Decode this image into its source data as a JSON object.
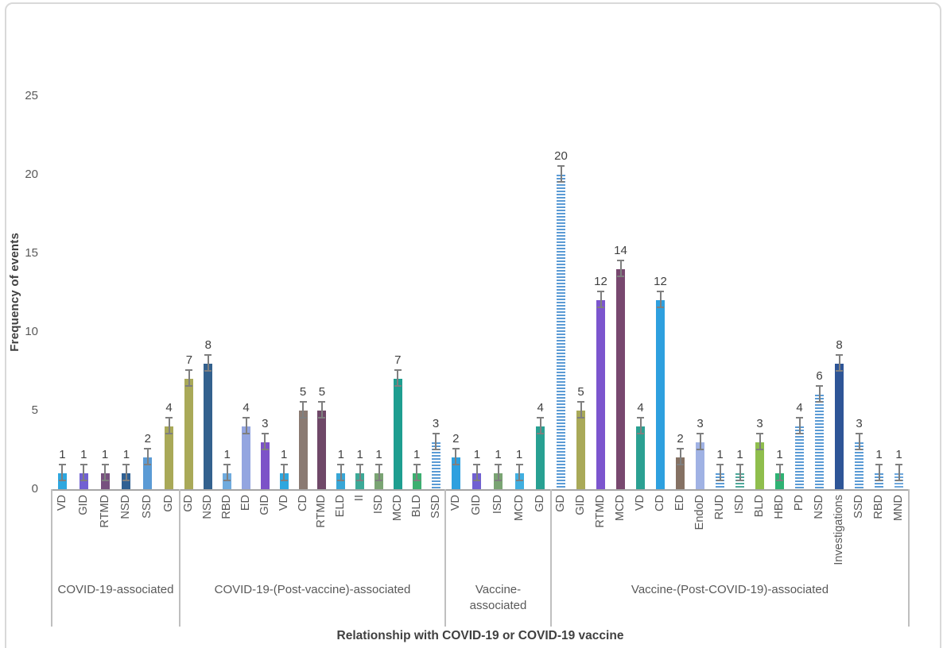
{
  "chart_data": {
    "type": "bar",
    "title": "",
    "xlabel": "Relationship with COVID-19 or COVID-19 vaccine",
    "ylabel": "Frequency of events",
    "ylim": [
      0,
      25
    ],
    "yticks": [
      0,
      5,
      10,
      15,
      20,
      25
    ],
    "grid": false,
    "legend_position": "none",
    "error_bars": true,
    "data_labels": true,
    "groups": [
      {
        "label": "COVID-19-associated",
        "categories": [
          "VD",
          "GID",
          "RTMD",
          "NSD",
          "SSD",
          "GD"
        ],
        "values": [
          1,
          1,
          1,
          1,
          2,
          4
        ],
        "colors": [
          "#2EA7DF",
          "#7161D2",
          "#77517F",
          "#2F6093",
          "#5B9BD5",
          "#A9A958"
        ],
        "striped": [
          false,
          false,
          false,
          false,
          false,
          false
        ]
      },
      {
        "label": "COVID-19-(Post-vaccine)-associated",
        "categories": [
          "GD",
          "NSD",
          "RBD",
          "ED",
          "GID",
          "VD",
          "CD",
          "RTMD",
          "ELD",
          "II",
          "ISD",
          "MCD",
          "BLD",
          "SSD"
        ],
        "values": [
          7,
          8,
          1,
          4,
          3,
          1,
          5,
          5,
          1,
          1,
          1,
          7,
          1,
          3
        ],
        "colors": [
          "#A9A958",
          "#33618E",
          "#6FABDE",
          "#93A5E0",
          "#7C52C8",
          "#2EA7DF",
          "#8A7A72",
          "#6F4868",
          "#38A6D6",
          "#3CA997",
          "#7AA473",
          "#1E9E90",
          "#3CAF70",
          "#5B9BD5"
        ],
        "striped": [
          false,
          false,
          false,
          false,
          false,
          false,
          false,
          false,
          false,
          false,
          false,
          false,
          false,
          true
        ]
      },
      {
        "label": "Vaccine-\nassociated",
        "categories": [
          "VD",
          "GID",
          "ISD",
          "MCD",
          "GD"
        ],
        "values": [
          2,
          1,
          1,
          1,
          4
        ],
        "colors": [
          "#2EA0DF",
          "#7161D2",
          "#7AA473",
          "#41AFE0",
          "#28A092"
        ],
        "striped": [
          false,
          false,
          false,
          false,
          false
        ]
      },
      {
        "label": "Vaccine-(Post-COVID-19)-associated",
        "categories": [
          "GD",
          "GID",
          "RTMD",
          "MCD",
          "VD",
          "CD",
          "ED",
          "EndoD",
          "RUD",
          "ISD",
          "BLD",
          "HBD",
          "PD",
          "NSD",
          "Investigations",
          "SSD",
          "RBD",
          "MND"
        ],
        "values": [
          20,
          5,
          12,
          14,
          4,
          12,
          2,
          3,
          1,
          1,
          3,
          1,
          4,
          6,
          8,
          3,
          1,
          1
        ],
        "colors": [
          "#5B9BD5",
          "#A9A958",
          "#7C55CE",
          "#78486F",
          "#2BA092",
          "#2EA0DF",
          "#857163",
          "#A0B2E4",
          "#5B9BD5",
          "#4FA89A",
          "#8FBE4D",
          "#2FB273",
          "#5B9BD5",
          "#5B9BD5",
          "#2E5597",
          "#5B9BD5",
          "#5B9BD5",
          "#6FA8DC"
        ],
        "striped": [
          true,
          false,
          false,
          false,
          false,
          false,
          false,
          false,
          true,
          true,
          false,
          false,
          true,
          true,
          false,
          true,
          true,
          true
        ]
      }
    ]
  }
}
